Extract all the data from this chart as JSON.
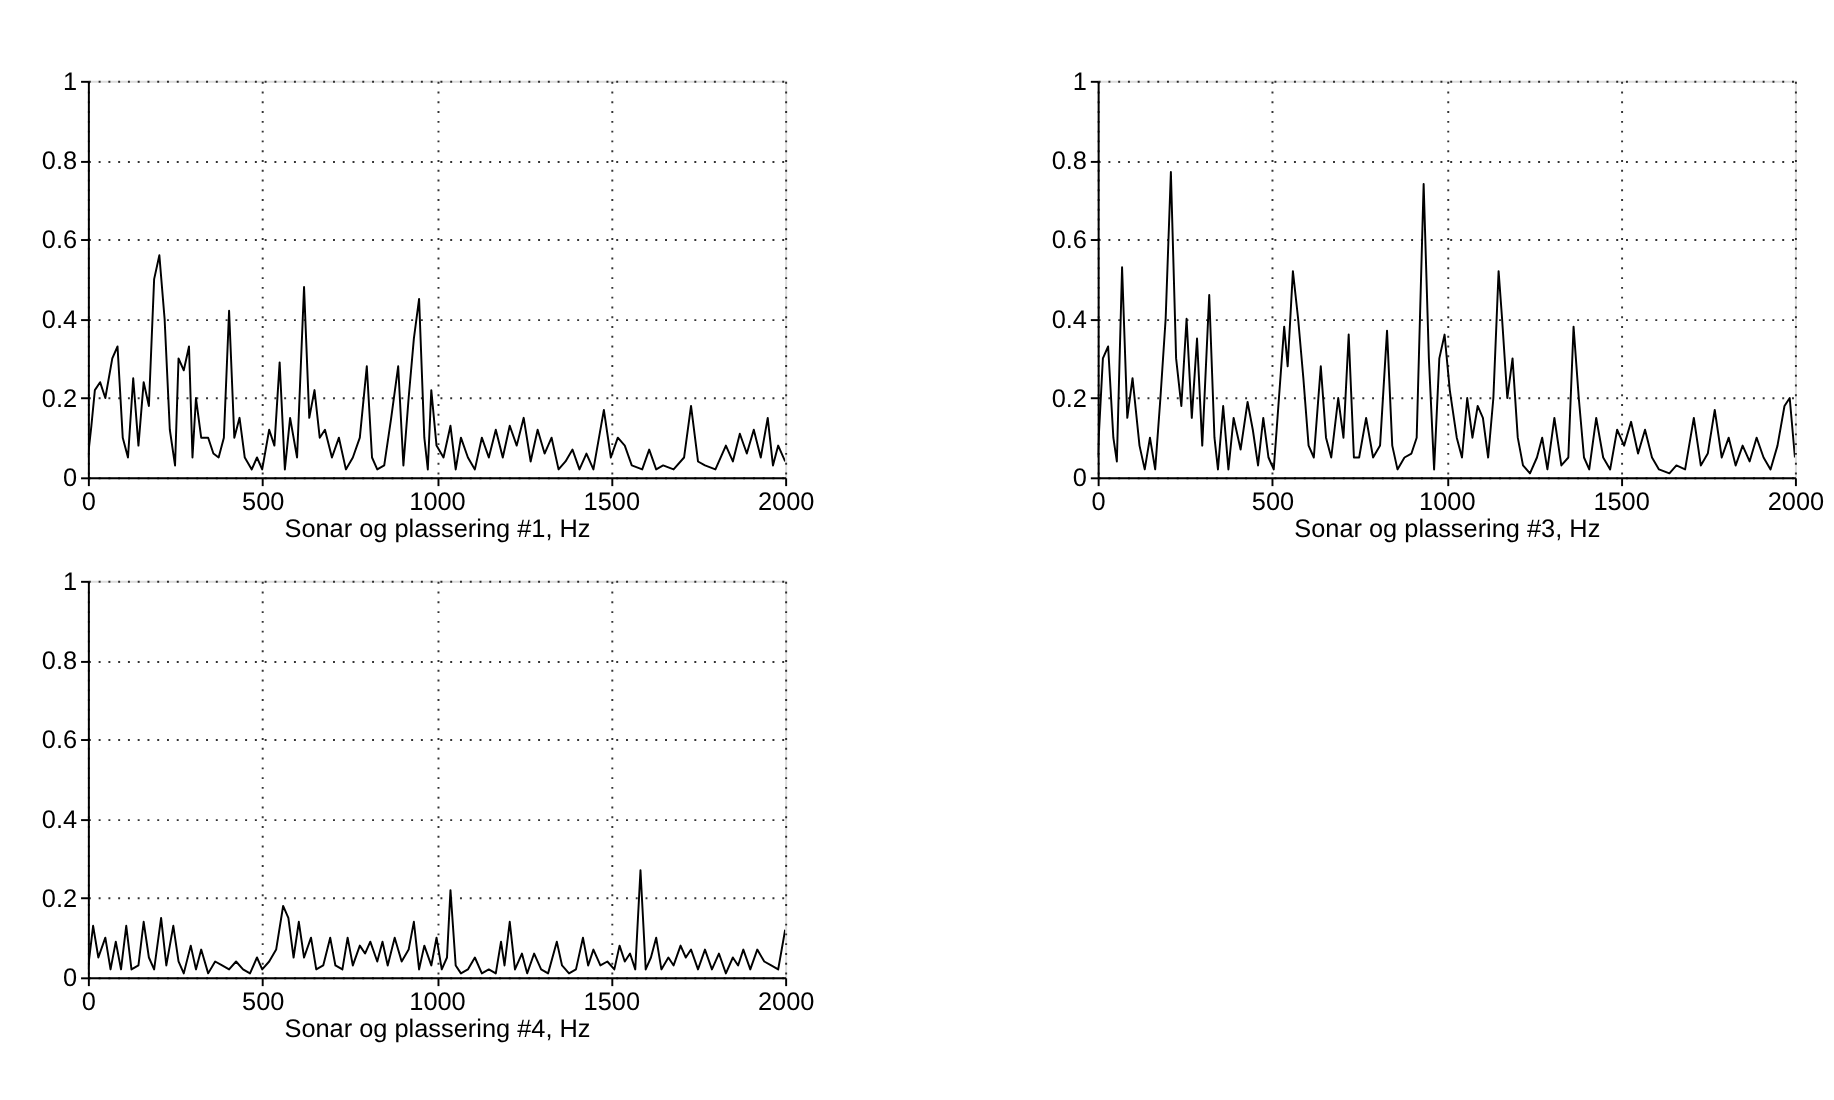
{
  "chart_data": [
    {
      "type": "line",
      "xlabel": "Sonar og plassering #1, Hz",
      "xlim": [
        0,
        2000
      ],
      "xticks": [
        0,
        500,
        1000,
        1500,
        2000
      ],
      "ylim": [
        0,
        1
      ],
      "yticks": [
        0,
        0.2,
        0.4,
        0.6,
        0.8,
        1
      ],
      "grid": true,
      "series": [
        {
          "color": "#000000",
          "x": [
            0,
            10,
            20,
            35,
            50,
            70,
            85,
            100,
            115,
            130,
            145,
            160,
            175,
            190,
            205,
            220,
            235,
            250,
            260,
            275,
            290,
            300,
            310,
            325,
            345,
            360,
            375,
            390,
            405,
            420,
            435,
            450,
            470,
            485,
            500,
            520,
            535,
            550,
            565,
            580,
            600,
            620,
            635,
            650,
            665,
            680,
            700,
            720,
            740,
            760,
            780,
            800,
            815,
            830,
            850,
            870,
            890,
            905,
            920,
            935,
            950,
            965,
            975,
            985,
            1000,
            1020,
            1040,
            1055,
            1070,
            1090,
            1110,
            1130,
            1150,
            1170,
            1190,
            1210,
            1230,
            1250,
            1270,
            1290,
            1310,
            1330,
            1350,
            1370,
            1390,
            1410,
            1430,
            1450,
            1480,
            1500,
            1520,
            1540,
            1560,
            1590,
            1610,
            1630,
            1650,
            1680,
            1710,
            1730,
            1750,
            1770,
            1800,
            1830,
            1850,
            1870,
            1890,
            1910,
            1930,
            1950,
            1965,
            1980,
            2000
          ],
          "values": [
            0.05,
            0.13,
            0.22,
            0.24,
            0.2,
            0.3,
            0.33,
            0.1,
            0.05,
            0.25,
            0.08,
            0.24,
            0.18,
            0.5,
            0.56,
            0.4,
            0.12,
            0.03,
            0.3,
            0.27,
            0.33,
            0.05,
            0.2,
            0.1,
            0.1,
            0.06,
            0.05,
            0.1,
            0.42,
            0.1,
            0.15,
            0.05,
            0.02,
            0.05,
            0.02,
            0.12,
            0.08,
            0.29,
            0.02,
            0.15,
            0.05,
            0.48,
            0.15,
            0.22,
            0.1,
            0.12,
            0.05,
            0.1,
            0.02,
            0.05,
            0.1,
            0.28,
            0.05,
            0.02,
            0.03,
            0.15,
            0.28,
            0.03,
            0.2,
            0.35,
            0.45,
            0.1,
            0.02,
            0.22,
            0.08,
            0.05,
            0.13,
            0.02,
            0.1,
            0.05,
            0.02,
            0.1,
            0.05,
            0.12,
            0.05,
            0.13,
            0.08,
            0.15,
            0.04,
            0.12,
            0.06,
            0.1,
            0.02,
            0.04,
            0.07,
            0.02,
            0.06,
            0.02,
            0.17,
            0.05,
            0.1,
            0.08,
            0.03,
            0.02,
            0.07,
            0.02,
            0.03,
            0.02,
            0.05,
            0.18,
            0.04,
            0.03,
            0.02,
            0.08,
            0.04,
            0.11,
            0.06,
            0.12,
            0.05,
            0.15,
            0.03,
            0.08,
            0.04
          ]
        }
      ]
    },
    {
      "type": "line",
      "xlabel": "Sonar og plassering #3, Hz",
      "xlim": [
        0,
        2000
      ],
      "xticks": [
        0,
        500,
        1000,
        1500,
        2000
      ],
      "ylim": [
        0,
        1
      ],
      "yticks": [
        0,
        0.2,
        0.4,
        0.6,
        0.8,
        1
      ],
      "grid": true,
      "series": [
        {
          "color": "#000000",
          "x": [
            0,
            15,
            30,
            45,
            55,
            70,
            85,
            100,
            120,
            135,
            150,
            165,
            180,
            195,
            210,
            225,
            240,
            255,
            270,
            285,
            300,
            320,
            335,
            345,
            360,
            375,
            390,
            410,
            430,
            445,
            460,
            475,
            490,
            505,
            520,
            535,
            545,
            560,
            575,
            590,
            605,
            620,
            640,
            655,
            670,
            690,
            705,
            720,
            735,
            750,
            770,
            790,
            810,
            830,
            845,
            860,
            880,
            900,
            915,
            935,
            950,
            965,
            980,
            995,
            1010,
            1030,
            1045,
            1060,
            1075,
            1090,
            1105,
            1120,
            1135,
            1150,
            1160,
            1175,
            1190,
            1205,
            1220,
            1240,
            1260,
            1275,
            1290,
            1310,
            1330,
            1350,
            1365,
            1380,
            1395,
            1410,
            1430,
            1450,
            1470,
            1490,
            1510,
            1530,
            1550,
            1570,
            1590,
            1610,
            1640,
            1660,
            1685,
            1710,
            1730,
            1750,
            1770,
            1790,
            1810,
            1830,
            1850,
            1870,
            1890,
            1910,
            1930,
            1950,
            1970,
            1985,
            2000
          ],
          "values": [
            0.05,
            0.3,
            0.33,
            0.1,
            0.04,
            0.53,
            0.15,
            0.25,
            0.08,
            0.02,
            0.1,
            0.02,
            0.2,
            0.4,
            0.77,
            0.3,
            0.18,
            0.4,
            0.15,
            0.35,
            0.08,
            0.46,
            0.1,
            0.02,
            0.18,
            0.02,
            0.15,
            0.07,
            0.19,
            0.12,
            0.03,
            0.15,
            0.05,
            0.02,
            0.2,
            0.38,
            0.28,
            0.52,
            0.4,
            0.25,
            0.08,
            0.05,
            0.28,
            0.1,
            0.05,
            0.2,
            0.1,
            0.36,
            0.05,
            0.05,
            0.15,
            0.05,
            0.08,
            0.37,
            0.08,
            0.02,
            0.05,
            0.06,
            0.1,
            0.74,
            0.3,
            0.02,
            0.3,
            0.36,
            0.22,
            0.1,
            0.05,
            0.2,
            0.1,
            0.18,
            0.15,
            0.05,
            0.2,
            0.52,
            0.4,
            0.2,
            0.3,
            0.1,
            0.03,
            0.01,
            0.05,
            0.1,
            0.02,
            0.15,
            0.03,
            0.05,
            0.38,
            0.2,
            0.05,
            0.02,
            0.15,
            0.05,
            0.02,
            0.12,
            0.08,
            0.14,
            0.06,
            0.12,
            0.05,
            0.02,
            0.01,
            0.03,
            0.02,
            0.15,
            0.03,
            0.06,
            0.17,
            0.05,
            0.1,
            0.03,
            0.08,
            0.04,
            0.1,
            0.05,
            0.02,
            0.08,
            0.18,
            0.2,
            0.05
          ]
        }
      ]
    },
    {
      "type": "line",
      "xlabel": "Sonar og plassering #4, Hz",
      "xlim": [
        0,
        2000
      ],
      "xticks": [
        0,
        500,
        1000,
        1500,
        2000
      ],
      "ylim": [
        0,
        1
      ],
      "yticks": [
        0,
        0.2,
        0.4,
        0.6,
        0.8,
        1
      ],
      "grid": true,
      "series": [
        {
          "color": "#000000",
          "x": [
            0,
            15,
            30,
            50,
            65,
            80,
            95,
            110,
            125,
            145,
            160,
            175,
            190,
            210,
            225,
            245,
            260,
            275,
            295,
            310,
            325,
            345,
            365,
            385,
            405,
            425,
            445,
            465,
            485,
            500,
            520,
            540,
            560,
            575,
            590,
            605,
            620,
            640,
            655,
            675,
            695,
            710,
            730,
            745,
            760,
            780,
            795,
            810,
            830,
            845,
            860,
            880,
            900,
            920,
            935,
            950,
            965,
            985,
            1000,
            1015,
            1030,
            1040,
            1055,
            1070,
            1090,
            1110,
            1130,
            1150,
            1170,
            1185,
            1195,
            1210,
            1225,
            1245,
            1260,
            1280,
            1300,
            1320,
            1345,
            1360,
            1380,
            1400,
            1420,
            1435,
            1450,
            1470,
            1490,
            1510,
            1525,
            1540,
            1555,
            1570,
            1585,
            1600,
            1615,
            1630,
            1645,
            1665,
            1680,
            1700,
            1715,
            1730,
            1750,
            1770,
            1790,
            1810,
            1830,
            1850,
            1865,
            1880,
            1900,
            1920,
            1940,
            1960,
            1980,
            2000
          ],
          "values": [
            0.02,
            0.13,
            0.05,
            0.1,
            0.02,
            0.09,
            0.02,
            0.13,
            0.02,
            0.03,
            0.14,
            0.05,
            0.02,
            0.15,
            0.03,
            0.13,
            0.04,
            0.01,
            0.08,
            0.02,
            0.07,
            0.01,
            0.04,
            0.03,
            0.02,
            0.04,
            0.02,
            0.01,
            0.05,
            0.02,
            0.04,
            0.07,
            0.18,
            0.15,
            0.05,
            0.14,
            0.05,
            0.1,
            0.02,
            0.03,
            0.1,
            0.03,
            0.02,
            0.1,
            0.03,
            0.08,
            0.06,
            0.09,
            0.04,
            0.09,
            0.03,
            0.1,
            0.04,
            0.07,
            0.14,
            0.02,
            0.08,
            0.03,
            0.1,
            0.02,
            0.05,
            0.22,
            0.03,
            0.01,
            0.02,
            0.05,
            0.01,
            0.02,
            0.01,
            0.09,
            0.03,
            0.14,
            0.02,
            0.06,
            0.01,
            0.06,
            0.02,
            0.01,
            0.09,
            0.03,
            0.01,
            0.02,
            0.1,
            0.03,
            0.07,
            0.03,
            0.04,
            0.02,
            0.08,
            0.04,
            0.06,
            0.02,
            0.27,
            0.02,
            0.05,
            0.1,
            0.02,
            0.05,
            0.03,
            0.08,
            0.05,
            0.07,
            0.02,
            0.07,
            0.02,
            0.06,
            0.01,
            0.05,
            0.03,
            0.07,
            0.02,
            0.07,
            0.04,
            0.03,
            0.02,
            0.12
          ]
        }
      ]
    }
  ]
}
